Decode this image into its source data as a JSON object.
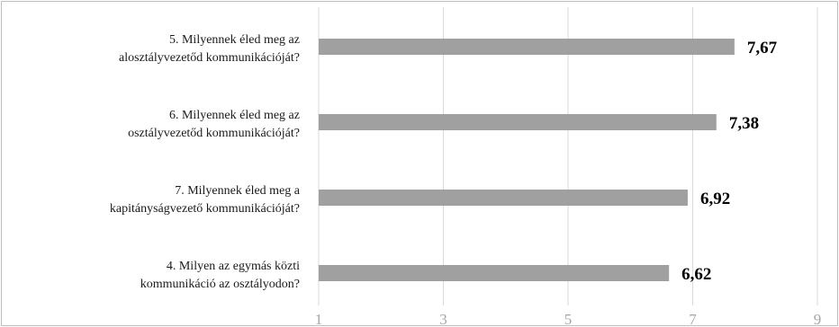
{
  "colors": {
    "bar": "#a0a0a0",
    "grid": "#d9d9d9",
    "border": "#bfbfbf",
    "tick_text": "#a6a6a6",
    "label_text": "#1a1a1a"
  },
  "chart_data": {
    "type": "bar",
    "orientation": "horizontal",
    "title": "",
    "xlabel": "",
    "ylabel": "",
    "xlim": [
      1,
      9
    ],
    "ticks": [
      1,
      3,
      5,
      7,
      9
    ],
    "tick_labels": [
      "1",
      "3",
      "5",
      "7",
      "9"
    ],
    "grid": true,
    "legend": "none",
    "categories": [
      {
        "line1": "5. Milyennek éled meg az",
        "line2": "alosztályvezetőd kommunikációját?"
      },
      {
        "line1": "6. Milyennek éled meg az",
        "line2": "osztályvezetőd kommunikációját?"
      },
      {
        "line1": "7. Milyennek éled meg a",
        "line2": "kapitányságvezető kommunikációját?"
      },
      {
        "line1": "4. Milyen az egymás közti",
        "line2": "kommunikáció az osztályodon?"
      }
    ],
    "values": [
      7.67,
      7.38,
      6.92,
      6.62
    ],
    "value_labels": [
      "7,67",
      "7,38",
      "6,92",
      "6,62"
    ]
  }
}
